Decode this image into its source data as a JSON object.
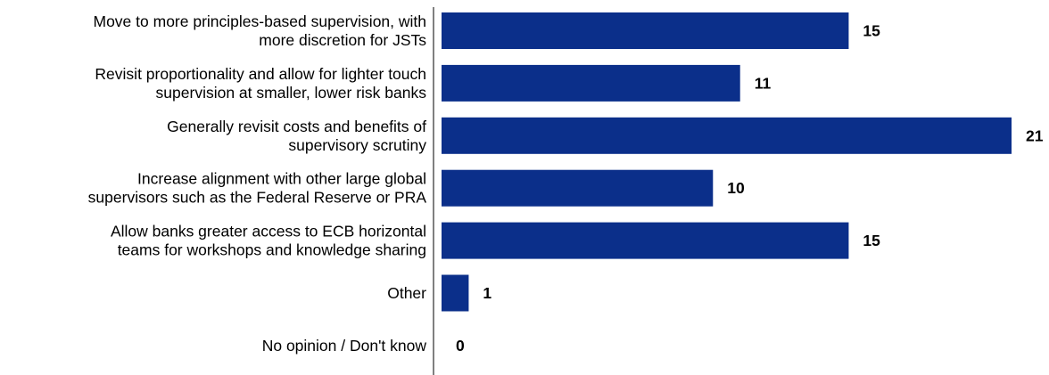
{
  "chart_data": {
    "type": "bar",
    "orientation": "horizontal",
    "categories": [
      [
        "Move to more principles-based supervision, with",
        "more discretion for JSTs"
      ],
      [
        "Revisit proportionality and allow for lighter touch",
        "supervision at smaller, lower risk banks"
      ],
      [
        "Generally revisit costs and benefits of",
        "supervisory scrutiny"
      ],
      [
        "Increase alignment with other large global",
        "supervisors such as the Federal Reserve or PRA"
      ],
      [
        "Allow banks greater access to ECB horizontal",
        "teams for workshops and knowledge sharing"
      ],
      [
        "Other"
      ],
      [
        "No opinion / Don't know"
      ]
    ],
    "values": [
      15,
      11,
      21,
      10,
      15,
      1,
      0
    ],
    "xlim": [
      0,
      21
    ],
    "bar_color": "#0b2f8a",
    "grid": false,
    "data_labels": true,
    "legend": "none"
  }
}
